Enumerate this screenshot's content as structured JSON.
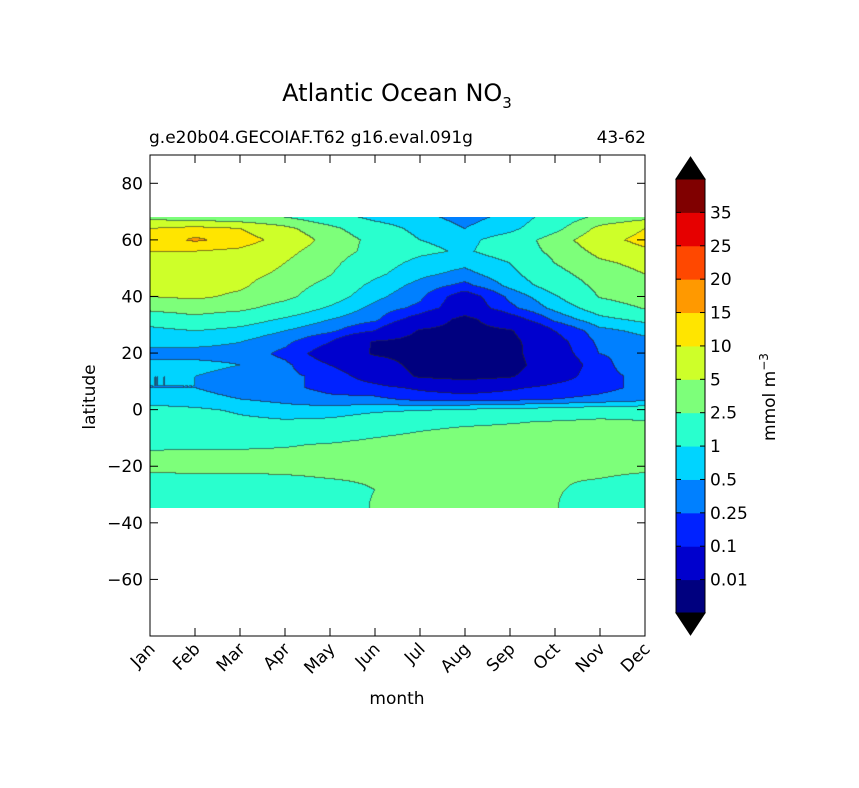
{
  "chart_data": {
    "type": "heatmap",
    "title": "Atlantic Ocean NO",
    "title_subscript": "3",
    "subtitle_left": "g.e20b04.GECOIAF.T62 g16.eval.091g",
    "subtitle_right": "43-62",
    "xlabel": "month",
    "ylabel": "latitude",
    "colorbar_label": "mmol m",
    "colorbar_label_superscript": "−3",
    "x_ticks": [
      "Jan",
      "Feb",
      "Mar",
      "Apr",
      "May",
      "Jun",
      "Jul",
      "Aug",
      "Sep",
      "Oct",
      "Nov",
      "Dec"
    ],
    "x_range": [
      1,
      12
    ],
    "y_range": [
      -80,
      90
    ],
    "y_ticks": [
      {
        "value": 80,
        "label": "80"
      },
      {
        "value": 60,
        "label": "60"
      },
      {
        "value": 40,
        "label": "40"
      },
      {
        "value": 20,
        "label": "20"
      },
      {
        "value": 0,
        "label": "0"
      },
      {
        "value": -20,
        "label": "−20"
      },
      {
        "value": -40,
        "label": "−40"
      },
      {
        "value": -60,
        "label": "−60"
      }
    ],
    "data_lat_range": [
      -34,
      68
    ],
    "levels": [
      0.01,
      0.1,
      0.25,
      0.5,
      1,
      2.5,
      5,
      10,
      15,
      20,
      25,
      35
    ],
    "level_labels": [
      "0.01",
      "0.1",
      "0.25",
      "0.5",
      "1",
      "2.5",
      "5",
      "10",
      "15",
      "20",
      "25",
      "35"
    ],
    "colors": [
      "#00007f",
      "#0000cd",
      "#0022ff",
      "#0080ff",
      "#00d4ff",
      "#29ffce",
      "#7dff7a",
      "#ceff29",
      "#ffe500",
      "#ff9900",
      "#ff4800",
      "#e60000",
      "#800000"
    ],
    "extend": "both",
    "grid": false,
    "lat": [
      68,
      64,
      60,
      56,
      52,
      48,
      44,
      40,
      36,
      32,
      28,
      24,
      20,
      16,
      12,
      8,
      4,
      0,
      -4,
      -8,
      -12,
      -16,
      -20,
      -24,
      -28,
      -32,
      -34
    ],
    "values_by_lat": [
      [
        4,
        3.5,
        3,
        2.5,
        1.5,
        0.8,
        0.6,
        0.4,
        0.6,
        1.5,
        3,
        4
      ],
      [
        10,
        12,
        10,
        6,
        3,
        1.5,
        0.8,
        0.5,
        0.8,
        2,
        6,
        10
      ],
      [
        12,
        16,
        13,
        8,
        4,
        2,
        1.0,
        0.8,
        1.5,
        3.5,
        8,
        12
      ],
      [
        10,
        10,
        9,
        6,
        3.5,
        2,
        1.2,
        0.9,
        1.5,
        3,
        6,
        9
      ],
      [
        7,
        7.5,
        7,
        5,
        3,
        1.5,
        0.8,
        0.6,
        1.0,
        2.5,
        4.5,
        6
      ],
      [
        6,
        6.5,
        6,
        4.5,
        2.6,
        1.2,
        0.6,
        0.4,
        0.8,
        2,
        3.5,
        5
      ],
      [
        5.5,
        6,
        5.5,
        3.5,
        2,
        0.8,
        0.4,
        0.2,
        0.6,
        1.5,
        3,
        4.5
      ],
      [
        5,
        5.5,
        4.5,
        3,
        1.5,
        0.6,
        0.3,
        0.05,
        0.3,
        0.9,
        2.6,
        4
      ],
      [
        3,
        3.5,
        3,
        1.8,
        0.9,
        0.4,
        0.2,
        0.04,
        0.2,
        0.6,
        1.5,
        2.6
      ],
      [
        1.5,
        2,
        1.5,
        0.9,
        0.5,
        0.3,
        0.05,
        0.005,
        0.05,
        0.3,
        0.8,
        1.2
      ],
      [
        0.8,
        1.0,
        0.8,
        0.5,
        0.3,
        0.1,
        0.008,
        0.005,
        0.008,
        0.1,
        0.4,
        0.6
      ],
      [
        0.6,
        0.6,
        0.5,
        0.3,
        0.1,
        0.008,
        0.005,
        0.005,
        0.005,
        0.06,
        0.3,
        0.4
      ],
      [
        0.4,
        0.4,
        0.4,
        0.2,
        0.05,
        0.008,
        0.005,
        0.005,
        0.005,
        0.05,
        0.25,
        0.3
      ],
      [
        0.6,
        0.6,
        0.5,
        0.3,
        0.1,
        0.03,
        0.005,
        0.005,
        0.005,
        0.03,
        0.2,
        0.4
      ],
      [
        0.5,
        0.5,
        0.4,
        0.3,
        0.2,
        0.05,
        0.008,
        0.005,
        0.008,
        0.05,
        0.2,
        0.3
      ],
      [
        0.5,
        0.5,
        0.4,
        0.3,
        0.2,
        0.15,
        0.08,
        0.05,
        0.08,
        0.15,
        0.2,
        0.3
      ],
      [
        0.6,
        0.6,
        0.5,
        0.4,
        0.3,
        0.3,
        0.2,
        0.18,
        0.2,
        0.25,
        0.3,
        0.4
      ],
      [
        1.5,
        1.2,
        0.9,
        0.7,
        0.7,
        0.9,
        1.0,
        1.2,
        1.4,
        1.5,
        1.8,
        1.8
      ],
      [
        1.5,
        1.5,
        1.2,
        1.1,
        1.2,
        1.6,
        2.0,
        2.2,
        2.4,
        2.6,
        2.8,
        2.6
      ],
      [
        1.8,
        1.8,
        1.7,
        1.7,
        1.8,
        2.2,
        2.6,
        3.0,
        3.0,
        3.0,
        3.0,
        3.0
      ],
      [
        2.3,
        2.3,
        2.3,
        2.4,
        2.6,
        3.0,
        3.5,
        3.6,
        3.4,
        3.2,
        3.0,
        3.0
      ],
      [
        2.7,
        2.8,
        2.8,
        2.8,
        3.0,
        3.5,
        4.2,
        4.5,
        4.2,
        3.6,
        3.2,
        3.0
      ],
      [
        2.8,
        2.9,
        2.9,
        2.9,
        3.0,
        3.2,
        3.3,
        3.3,
        3.3,
        3.0,
        2.9,
        2.8
      ],
      [
        2.2,
        2.2,
        2.2,
        2.3,
        2.5,
        2.7,
        2.8,
        2.8,
        2.7,
        2.6,
        2.5,
        2.2
      ],
      [
        1.6,
        1.6,
        1.6,
        1.7,
        2.0,
        2.5,
        2.7,
        2.7,
        2.7,
        2.6,
        2.2,
        1.8
      ],
      [
        1.5,
        1.5,
        1.5,
        1.6,
        1.8,
        2.6,
        2.7,
        2.7,
        2.7,
        2.6,
        1.8,
        1.6
      ],
      [
        1.5,
        1.5,
        1.5,
        1.6,
        1.8,
        2.6,
        2.7,
        2.7,
        2.7,
        2.6,
        1.8,
        1.6
      ]
    ]
  }
}
